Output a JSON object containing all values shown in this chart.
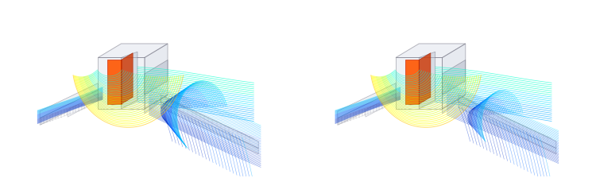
{
  "background_color": "#ffffff",
  "figsize": [
    7.5,
    2.24
  ],
  "dpi": 100,
  "colormap_colors": [
    "#000088",
    "#0033cc",
    "#0066ff",
    "#00aaff",
    "#00ddff",
    "#00ffcc",
    "#44ff88",
    "#aaff00",
    "#ddff00",
    "#ffff00",
    "#ffcc00",
    "#ff8800",
    "#ff4400"
  ],
  "box_face": "#d8dde8",
  "box_edge": "#555566",
  "duct_face": "#dde2ea",
  "duct_edge": "#777788",
  "heat_color": "#ff4400"
}
